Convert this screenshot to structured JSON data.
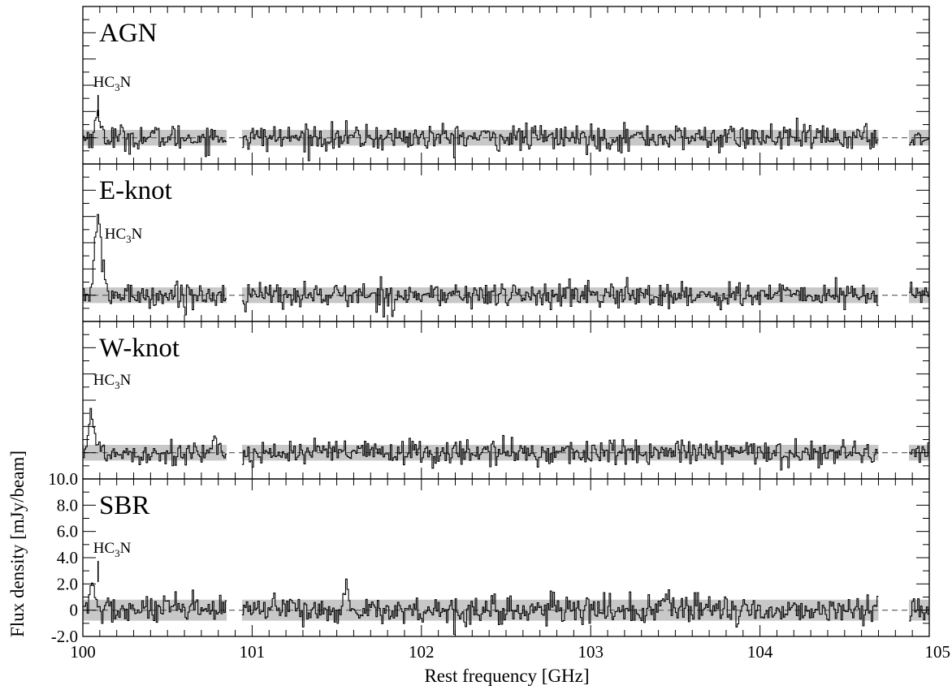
{
  "chart_data": {
    "type": "line",
    "xlabel": "Rest frequency [GHz]",
    "ylabel": "Flux density [mJy/beam]",
    "xlim": [
      100,
      105
    ],
    "ylim": [
      -2.0,
      10.0
    ],
    "x_ticks": [
      "100",
      "101",
      "102",
      "103",
      "104",
      "105"
    ],
    "y_ticks": [
      "-2.0",
      "0",
      "2.0",
      "4.0",
      "6.0",
      "8.0",
      "10.0"
    ],
    "shared_axes": true,
    "grid": false,
    "baseline": 0,
    "segments": [
      {
        "x0": 100.0,
        "x1": 100.85
      },
      {
        "x0": 100.94,
        "x1": 104.7
      },
      {
        "x0": 104.88,
        "x1": 105.0
      }
    ],
    "line_marker": {
      "label": "HC",
      "sub": "3",
      "suffix": "N",
      "x": 100.09
    },
    "panels": [
      {
        "name": "AGN",
        "noise_band": 0.6,
        "rms": 0.5,
        "peaks": [
          {
            "x": 100.09,
            "height": 1.4,
            "width": 0.02
          }
        ]
      },
      {
        "name": "E-knot",
        "noise_band": 0.6,
        "rms": 0.5,
        "peaks": [
          {
            "x": 100.09,
            "height": 5.6,
            "width": 0.02
          }
        ]
      },
      {
        "name": "W-knot",
        "noise_band": 0.6,
        "rms": 0.5,
        "peaks": [
          {
            "x": 100.05,
            "height": 2.7,
            "width": 0.02
          }
        ]
      },
      {
        "name": "SBR",
        "noise_band": 0.8,
        "rms": 0.55,
        "peaks": [
          {
            "x": 100.06,
            "height": 1.9,
            "width": 0.015
          },
          {
            "x": 101.57,
            "height": 1.2,
            "width": 0.02
          },
          {
            "x": 103.43,
            "height": 1.1,
            "width": 0.02
          }
        ]
      }
    ]
  }
}
